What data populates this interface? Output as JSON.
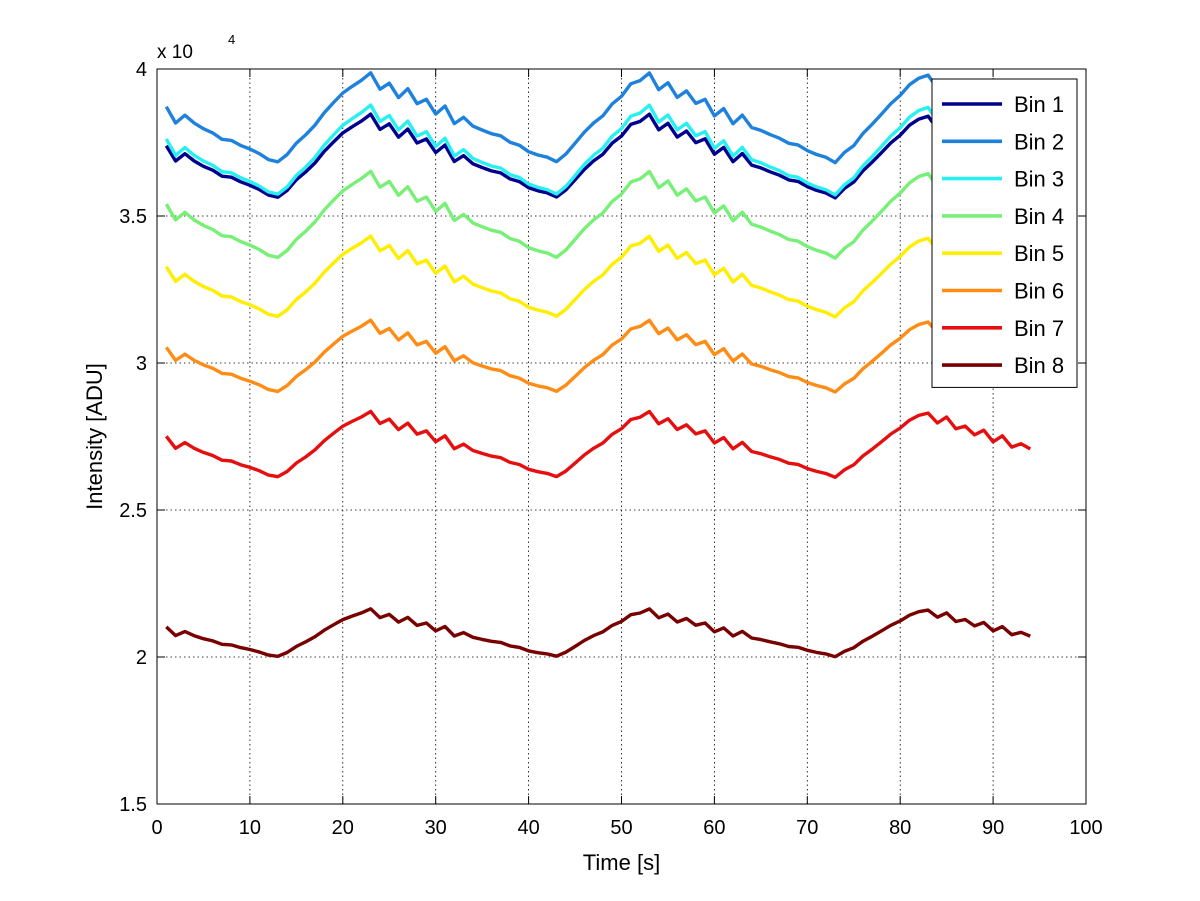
{
  "chart_data": {
    "type": "line",
    "title": "",
    "xlabel": "Time [s]",
    "ylabel": "Intensity [ADU]",
    "xlim": [
      0,
      100
    ],
    "ylim": [
      15000,
      40000
    ],
    "y_exponent_label": "x 10",
    "y_exponent_power": "4",
    "grid": true,
    "legend_position": "top-right",
    "x_ticks": [
      0,
      10,
      20,
      30,
      40,
      50,
      60,
      70,
      80,
      90,
      100
    ],
    "x_tick_labels": [
      "0",
      "10",
      "20",
      "30",
      "40",
      "50",
      "60",
      "70",
      "80",
      "90",
      "100"
    ],
    "y_ticks": [
      15000,
      20000,
      25000,
      30000,
      35000,
      40000
    ],
    "y_tick_labels": [
      "1.5",
      "2",
      "2.5",
      "3",
      "3.5",
      "4"
    ],
    "x_range": [
      1,
      94
    ],
    "period_s": 30,
    "trough_times_s": [
      13,
      43,
      73
    ],
    "series": [
      {
        "name": "Bin 1",
        "color": "#00008f",
        "mean": 37000,
        "amplitude": 1400
      },
      {
        "name": "Bin 2",
        "color": "#1e82dc",
        "mean": 38300,
        "amplitude": 1500
      },
      {
        "name": "Bin 3",
        "color": "#28f0f0",
        "mean": 37200,
        "amplitude": 1500
      },
      {
        "name": "Bin 4",
        "color": "#78f078",
        "mean": 35000,
        "amplitude": 1450
      },
      {
        "name": "Bin 5",
        "color": "#ffee00",
        "mean": 32900,
        "amplitude": 1350
      },
      {
        "name": "Bin 6",
        "color": "#ff8c14",
        "mean": 30200,
        "amplitude": 1200
      },
      {
        "name": "Bin 7",
        "color": "#e60f0f",
        "mean": 27200,
        "amplitude": 1100
      },
      {
        "name": "Bin 8",
        "color": "#780000",
        "mean": 20800,
        "amplitude": 800
      }
    ]
  }
}
